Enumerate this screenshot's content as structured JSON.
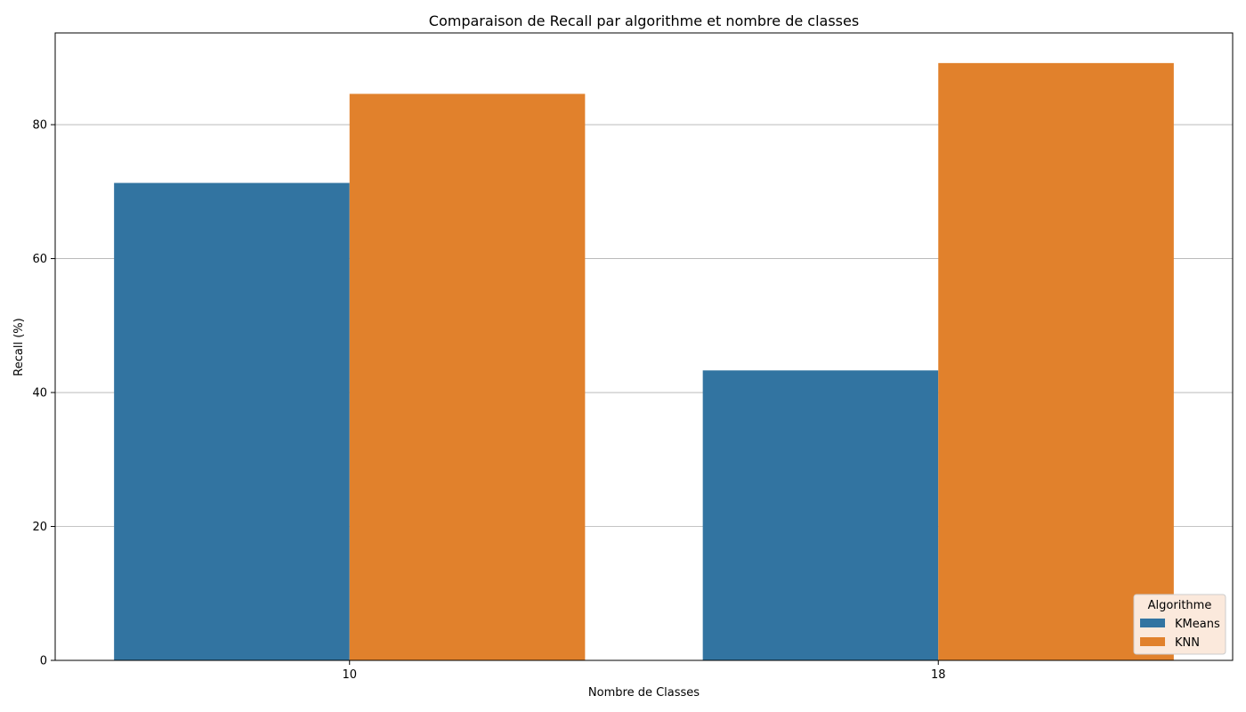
{
  "chart_data": {
    "type": "bar",
    "title": "Comparaison de Recall par algorithme et nombre de classes",
    "xlabel": "Nombre de Classes",
    "ylabel": "Recall (%)",
    "categories": [
      "10",
      "18"
    ],
    "series": [
      {
        "name": "KMeans",
        "values": [
          71.3,
          43.3
        ],
        "color": "#3274a1"
      },
      {
        "name": "KNN",
        "values": [
          84.6,
          89.2
        ],
        "color": "#e1812c"
      }
    ],
    "yticks": [
      0,
      20,
      40,
      60,
      80
    ],
    "ylim": [
      0,
      93.7
    ],
    "grid": "y",
    "legend": {
      "title": "Algorithme",
      "placement": "bottom-right",
      "background": "#fbe9dc"
    }
  }
}
